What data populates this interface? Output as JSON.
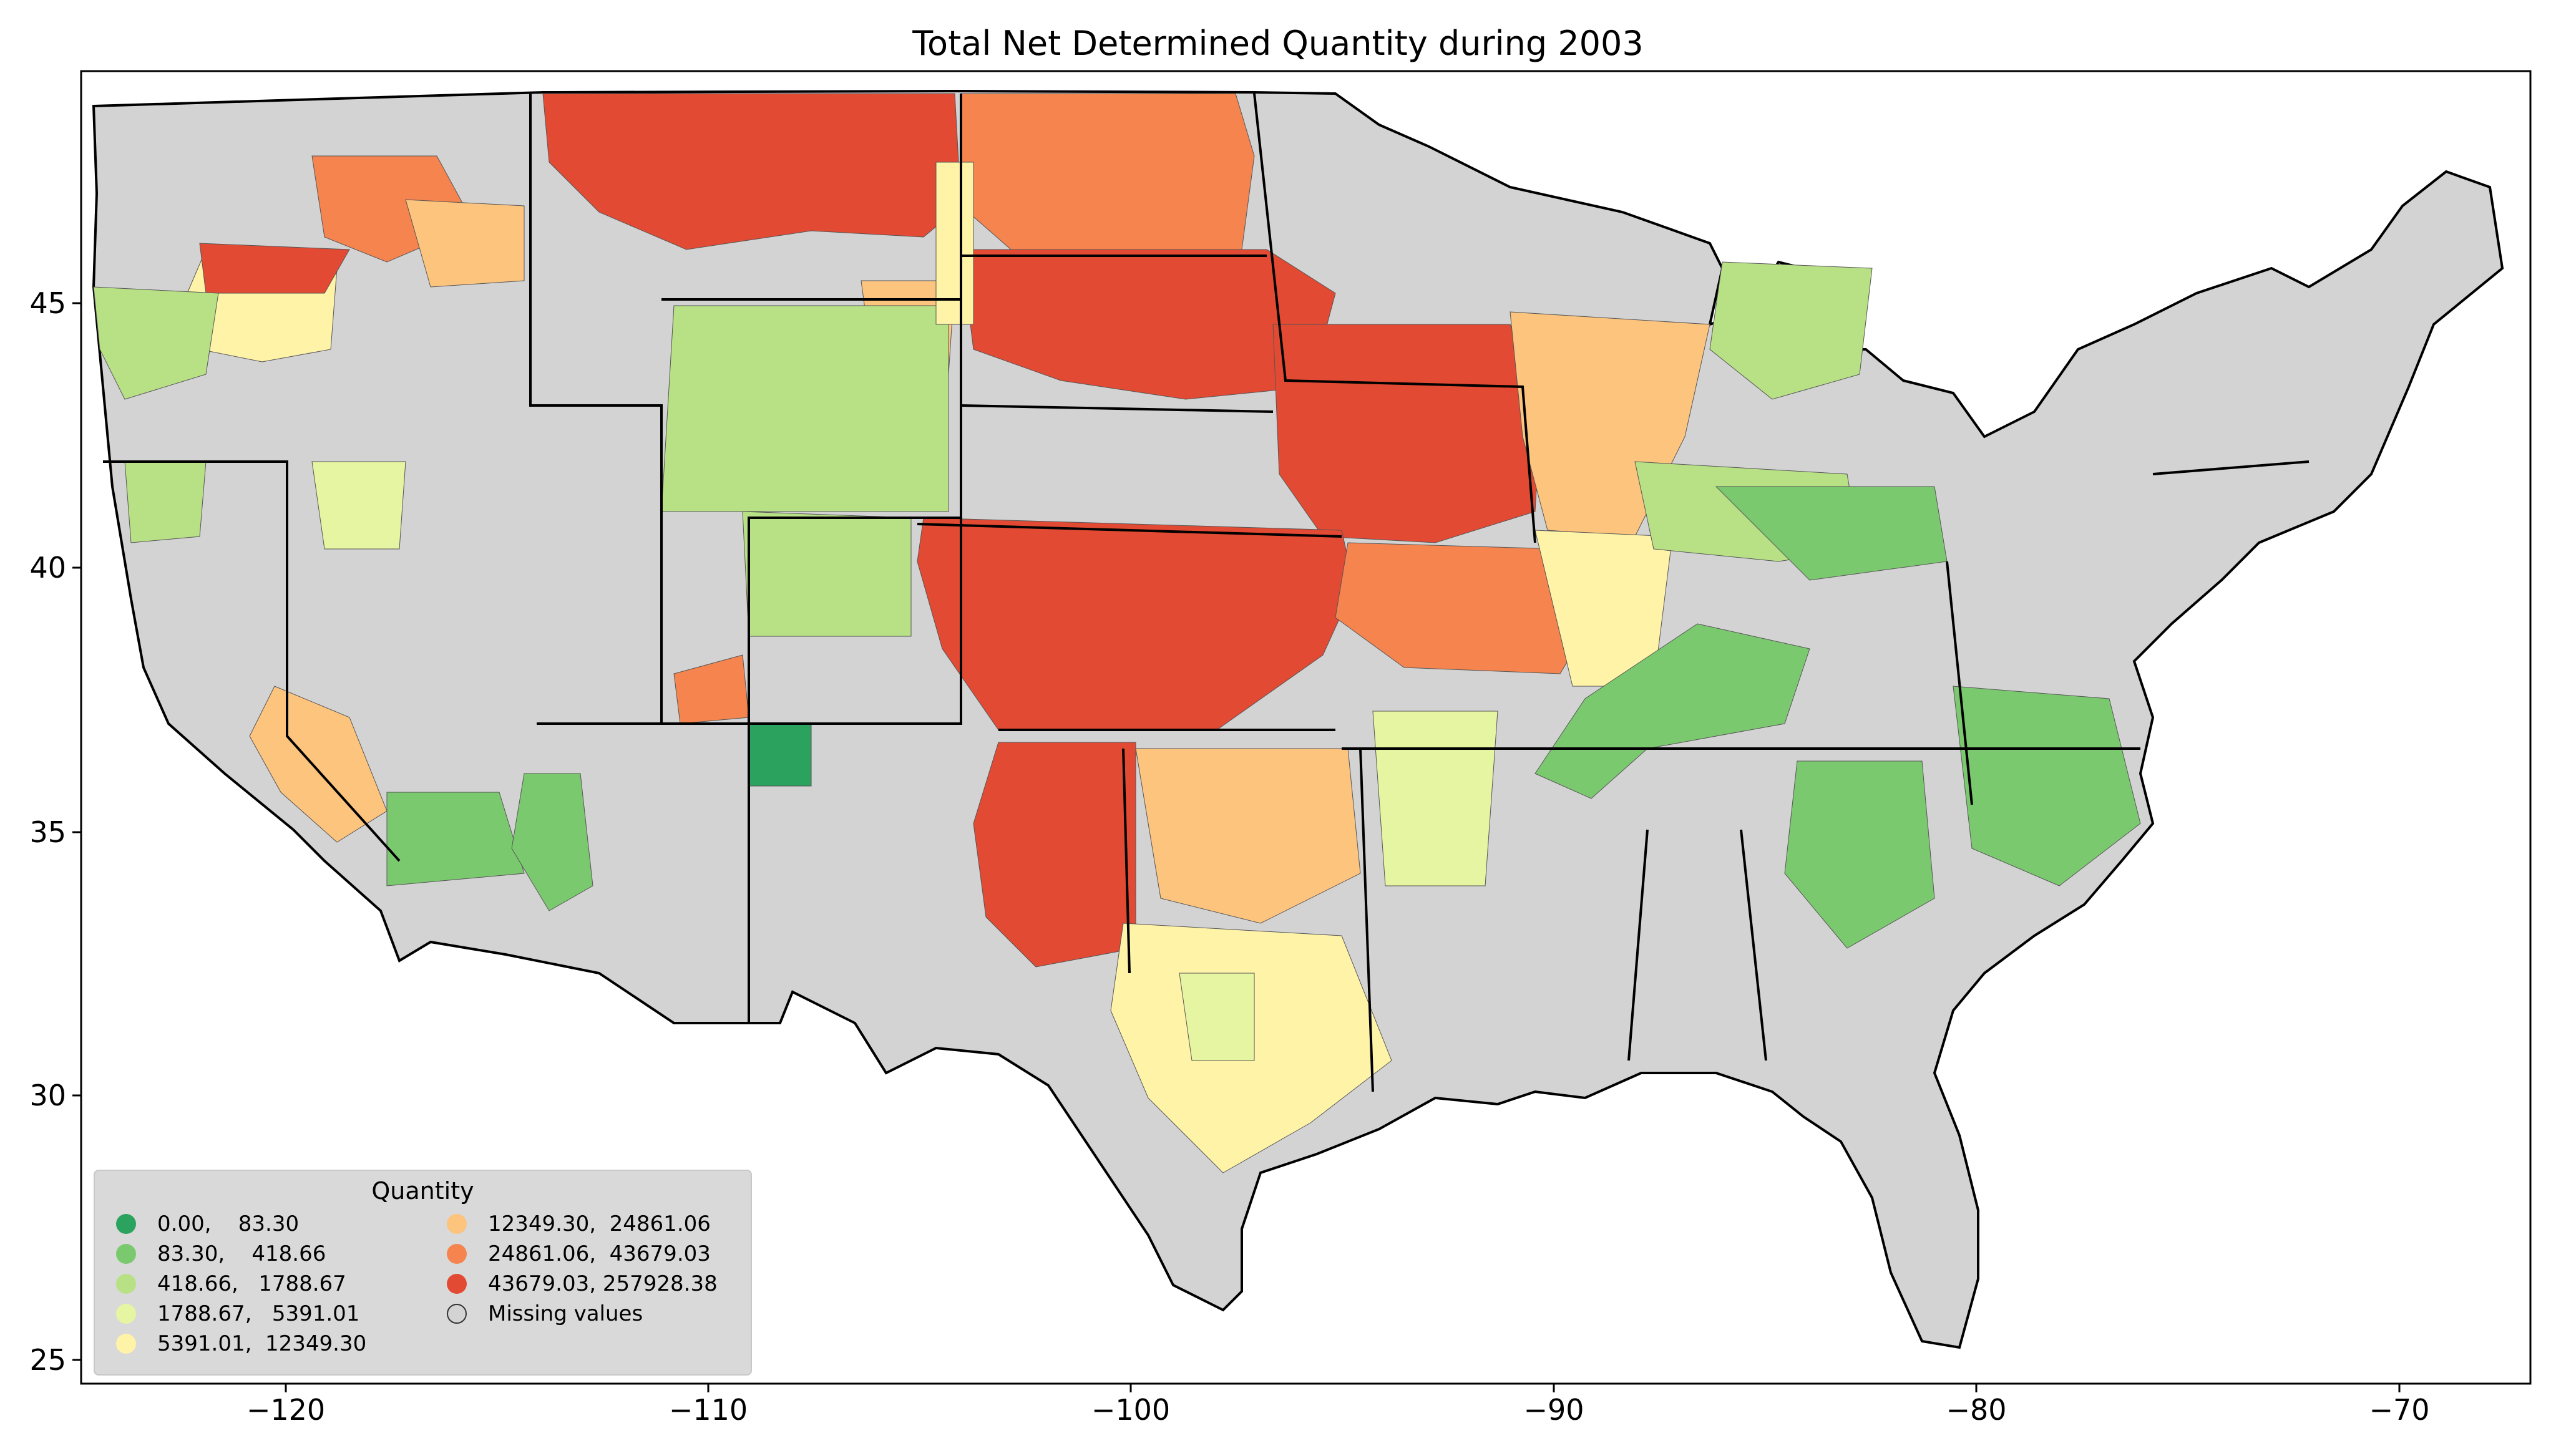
{
  "title": "Total Net Determined Quantity during 2003",
  "axes": {
    "x_ticks": [
      "−120",
      "−110",
      "−100",
      "−90",
      "−80",
      "−70"
    ],
    "y_ticks": [
      "45",
      "40",
      "35",
      "30",
      "25"
    ]
  },
  "legend": {
    "title": "Quantity",
    "items": [
      {
        "label": "0.00,    83.30",
        "color": "#2ca25f"
      },
      {
        "label": "83.30,    418.66",
        "color": "#7bc96f"
      },
      {
        "label": "418.66,   1788.67",
        "color": "#b8e186"
      },
      {
        "label": "1788.67,   5391.01",
        "color": "#e6f5a1"
      },
      {
        "label": "5391.01,  12349.30",
        "color": "#fff3a8"
      },
      {
        "label": "12349.30,  24861.06",
        "color": "#fdc47d"
      },
      {
        "label": "24861.06,  43679.03",
        "color": "#f5844f"
      },
      {
        "label": "43679.03, 257928.38",
        "color": "#e34a33"
      },
      {
        "label": "Missing values",
        "color": "#d3d3d3"
      }
    ]
  },
  "colors": {
    "missing": "#d3d3d3",
    "border": "#000000"
  }
}
